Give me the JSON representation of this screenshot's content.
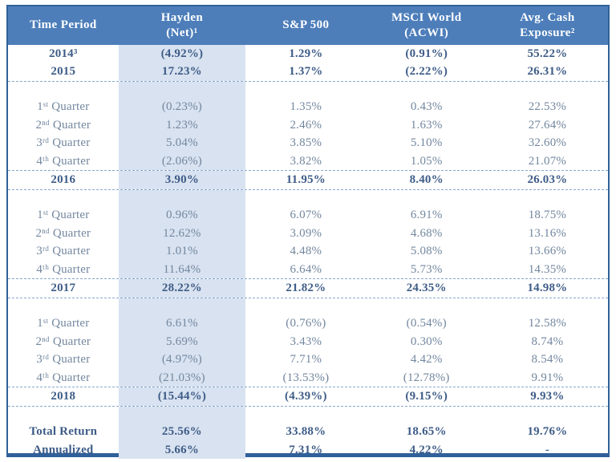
{
  "colors": {
    "header_bg": "#4d7eba",
    "header_text": "#ffffff",
    "outer_border": "#30609a",
    "highlight_column_bg": "#d8e2f0",
    "body_text": "#73879f",
    "bold_text": "#3e5c87",
    "dashed_divider": "#87a7cd"
  },
  "chart_data": {
    "type": "table",
    "title": "Hayden (Net) returns vs. S&P 500, MSCI World (ACWI) and Avg. Cash Exposure",
    "highlighted_column": "Hayden (Net)¹",
    "columns": [
      {
        "lines": [
          "Time Period"
        ]
      },
      {
        "lines": [
          "Hayden",
          "(Net)¹"
        ]
      },
      {
        "lines": [
          "S&P 500"
        ]
      },
      {
        "lines": [
          "MSCI World",
          "(ACWI)"
        ]
      },
      {
        "lines": [
          "Avg. Cash",
          "Exposure²"
        ]
      }
    ],
    "rows": [
      {
        "style": "year",
        "label": "2014³",
        "values": [
          "(4.92%)",
          "1.29%",
          "(0.91%)",
          "55.22%"
        ]
      },
      {
        "style": "year",
        "label": "2015",
        "values": [
          "17.23%",
          "1.37%",
          "(2.22%)",
          "26.31%"
        ],
        "dashed_after": true
      },
      {
        "style": "gap",
        "label": "",
        "values": [
          "",
          "",
          "",
          ""
        ]
      },
      {
        "style": "quarter",
        "label": "1ˢᵗ Quarter",
        "values": [
          "(0.23%)",
          "1.35%",
          "0.43%",
          "22.53%"
        ]
      },
      {
        "style": "quarter",
        "label": "2ⁿᵈ Quarter",
        "values": [
          "1.23%",
          "2.46%",
          "1.63%",
          "27.64%"
        ]
      },
      {
        "style": "quarter",
        "label": "3ʳᵈ Quarter",
        "values": [
          "5.04%",
          "3.85%",
          "5.10%",
          "32.60%"
        ]
      },
      {
        "style": "quarter",
        "label": "4ᵗʰ Quarter",
        "values": [
          "(2.06%)",
          "3.82%",
          "1.05%",
          "21.07%"
        ],
        "dashed_after": true
      },
      {
        "style": "year",
        "label": "2016",
        "values": [
          "3.90%",
          "11.95%",
          "8.40%",
          "26.03%"
        ],
        "dashed_after": true
      },
      {
        "style": "gap",
        "label": "",
        "values": [
          "",
          "",
          "",
          ""
        ]
      },
      {
        "style": "quarter",
        "label": "1ˢᵗ Quarter",
        "values": [
          "0.96%",
          "6.07%",
          "6.91%",
          "18.75%"
        ]
      },
      {
        "style": "quarter",
        "label": "2ⁿᵈ Quarter",
        "values": [
          "12.62%",
          "3.09%",
          "4.68%",
          "13.16%"
        ]
      },
      {
        "style": "quarter",
        "label": "3ʳᵈ Quarter",
        "values": [
          "1.01%",
          "4.48%",
          "5.08%",
          "13.66%"
        ]
      },
      {
        "style": "quarter",
        "label": "4ᵗʰ Quarter",
        "values": [
          "11.64%",
          "6.64%",
          "5.73%",
          "14.35%"
        ],
        "dashed_after": true
      },
      {
        "style": "year",
        "label": "2017",
        "values": [
          "28.22%",
          "21.82%",
          "24.35%",
          "14.98%"
        ],
        "dashed_after": true
      },
      {
        "style": "gap",
        "label": "",
        "values": [
          "",
          "",
          "",
          ""
        ]
      },
      {
        "style": "quarter",
        "label": "1ˢᵗ Quarter",
        "values": [
          "6.61%",
          "(0.76%)",
          "(0.54%)",
          "12.58%"
        ]
      },
      {
        "style": "quarter",
        "label": "2ⁿᵈ Quarter",
        "values": [
          "5.69%",
          "3.43%",
          "0.30%",
          "8.74%"
        ]
      },
      {
        "style": "quarter",
        "label": "3ʳᵈ Quarter",
        "values": [
          "(4.97%)",
          "7.71%",
          "4.42%",
          "8.54%"
        ]
      },
      {
        "style": "quarter",
        "label": "4ᵗʰ Quarter",
        "values": [
          "(21.03%)",
          "(13.53%)",
          "(12.78%)",
          "9.91%"
        ],
        "dashed_after": true
      },
      {
        "style": "year",
        "label": "2018",
        "values": [
          "(15.44%)",
          "(4.39%)",
          "(9.15%)",
          "9.93%"
        ],
        "dashed_after": true
      },
      {
        "style": "gap",
        "label": "",
        "values": [
          "",
          "",
          "",
          ""
        ]
      },
      {
        "style": "total",
        "label": "Total Return",
        "values": [
          "25.56%",
          "33.88%",
          "18.65%",
          "19.76%"
        ]
      },
      {
        "style": "total",
        "label": "Annualized",
        "values": [
          "5.66%",
          "7.31%",
          "4.22%",
          "-"
        ]
      }
    ]
  }
}
